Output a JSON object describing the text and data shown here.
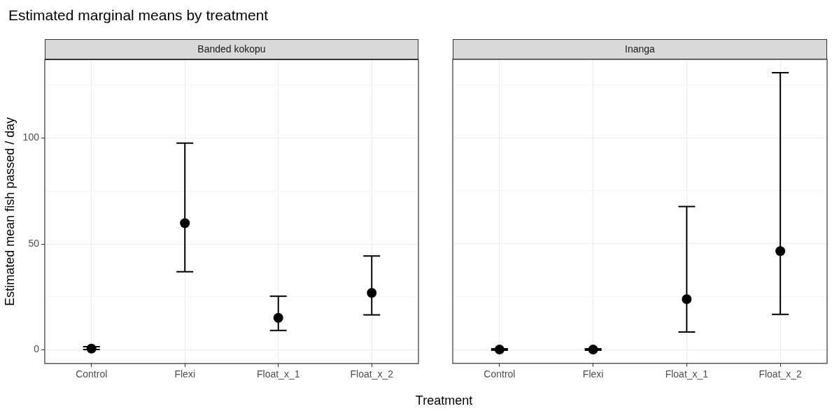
{
  "chart_data": [
    {
      "type": "scatter",
      "title": "Estimated marginal means by treatment",
      "subtitle": "Banded kokopu",
      "xlabel": "Treatment",
      "ylabel": "Estimated mean fish passed / day",
      "categories": [
        "Control",
        "Flexi",
        "Float_x_1",
        "Float_x_2"
      ],
      "series": [
        {
          "color": "#000000",
          "values": [
            0.6,
            59.8,
            15.1,
            26.9
          ],
          "errors": [
            [
              0.2,
              1.5
            ],
            [
              36.9,
              97.6
            ],
            [
              9.2,
              25.3
            ],
            [
              16.5,
              44.3
            ]
          ]
        }
      ],
      "ylim": [
        -6.5,
        137
      ],
      "yticks": [
        0,
        {
          "value": 25,
          "label": null
        },
        50,
        {
          "value": 75,
          "label": null
        },
        100,
        {
          "value": 125,
          "label": null
        }
      ],
      "grid": true,
      "marker": "circle"
    },
    {
      "type": "scatter",
      "subtitle": "Inanga",
      "categories": [
        "Control",
        "Flexi",
        "Float_x_1",
        "Float_x_2"
      ],
      "series": [
        {
          "color": "#000000",
          "values": [
            0,
            0,
            23.8,
            46.5
          ],
          "errors": [
            [
              -0.3,
              0.4
            ],
            [
              -0.3,
              0.4
            ],
            [
              8.3,
              67.5
            ],
            [
              16.6,
              130.7
            ]
          ]
        }
      ],
      "ylim": [
        -6.5,
        137
      ],
      "yticks": [
        0,
        {
          "value": 25,
          "label": null
        },
        50,
        {
          "value": 75,
          "label": null
        },
        100,
        {
          "value": 125,
          "label": null
        }
      ],
      "grid": true,
      "marker": "circle",
      "tick_labels": "x"
    }
  ]
}
